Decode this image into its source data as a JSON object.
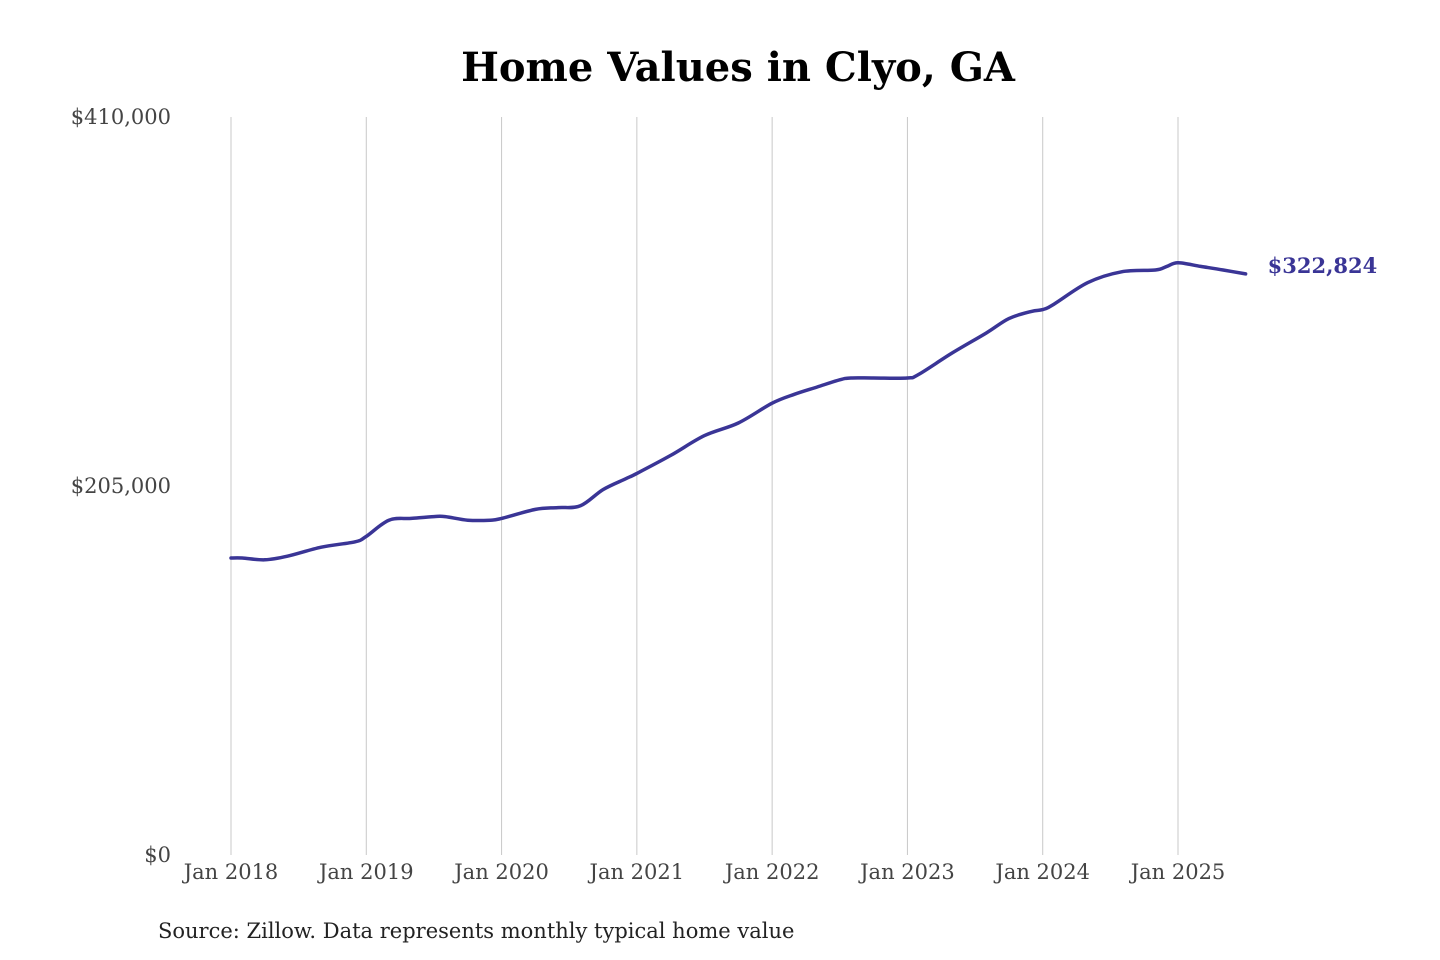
{
  "chart_data": {
    "type": "line",
    "title": "Home Values in Clyo, GA",
    "xlabel": "",
    "ylabel": "",
    "ylim": [
      0,
      410000
    ],
    "yticks": [
      {
        "value": 0,
        "label": "$0"
      },
      {
        "value": 205000,
        "label": "$205,000"
      },
      {
        "value": 410000,
        "label": "$410,000"
      }
    ],
    "xticks": [
      {
        "value": 2018.0,
        "label": "Jan 2018"
      },
      {
        "value": 2019.0,
        "label": "Jan 2019"
      },
      {
        "value": 2020.0,
        "label": "Jan 2020"
      },
      {
        "value": 2021.0,
        "label": "Jan 2021"
      },
      {
        "value": 2022.0,
        "label": "Jan 2022"
      },
      {
        "value": 2023.0,
        "label": "Jan 2023"
      },
      {
        "value": 2024.0,
        "label": "Jan 2024"
      },
      {
        "value": 2025.0,
        "label": "Jan 2025"
      }
    ],
    "grid": "vertical",
    "legend": "none",
    "series": [
      {
        "color": "#3a3596",
        "end_label": "$322,824",
        "x": [
          2018.0,
          2018.083,
          2018.25,
          2018.417,
          2018.667,
          2018.917,
          2019.0,
          2019.167,
          2019.333,
          2019.5,
          2019.583,
          2019.75,
          2019.917,
          2020.0,
          2020.25,
          2020.417,
          2020.583,
          2020.75,
          2020.917,
          2021.0,
          2021.25,
          2021.5,
          2021.75,
          2022.0,
          2022.167,
          2022.333,
          2022.5,
          2022.583,
          2022.75,
          2023.0,
          2023.083,
          2023.333,
          2023.583,
          2023.75,
          2023.917,
          2024.0,
          2024.083,
          2024.333,
          2024.583,
          2024.833,
          2024.917,
          2025.0,
          2025.167,
          2025.333,
          2025.5
        ],
        "values": [
          165000,
          165000,
          164000,
          166000,
          171000,
          174000,
          177000,
          186000,
          187000,
          188000,
          188000,
          186000,
          186000,
          187000,
          192000,
          193000,
          194000,
          203000,
          209000,
          212000,
          222000,
          233000,
          240000,
          251000,
          256000,
          260000,
          264000,
          265000,
          265000,
          265000,
          267000,
          279000,
          290000,
          298000,
          302000,
          303000,
          306000,
          318000,
          324000,
          325000,
          327000,
          329000,
          327000,
          325000,
          322824
        ]
      }
    ],
    "source": "Source: Zillow. Data represents monthly typical home value"
  }
}
